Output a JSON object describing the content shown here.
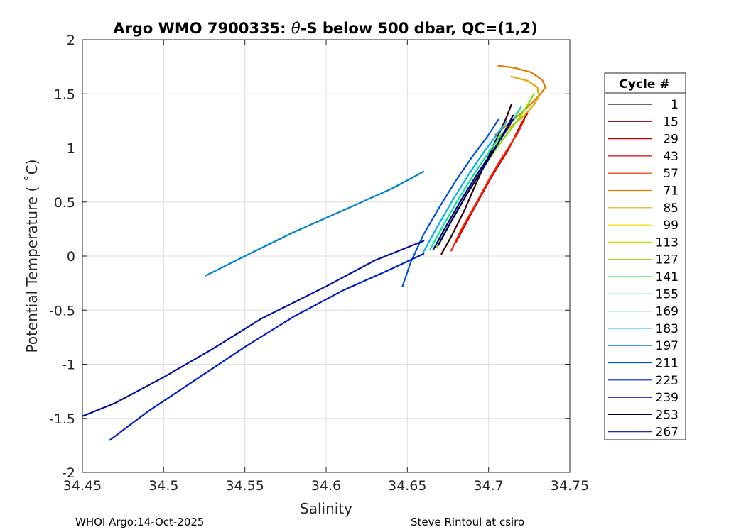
{
  "chart_data": {
    "type": "line",
    "title_prefix": "Argo WMO 7900335: ",
    "title_theta": "θ",
    "title_suffix": "-S below 500 dbar,  QC=(1,2)",
    "xlabel": "Salinity",
    "ylabel": "Potential Temperature ( ˚C)",
    "xlim": [
      34.45,
      34.75
    ],
    "ylim": [
      -2,
      2
    ],
    "x_ticks": [
      34.45,
      34.5,
      34.55,
      34.6,
      34.65,
      34.7,
      34.75
    ],
    "x_tick_labels": [
      "34.45",
      "34.5",
      "34.55",
      "34.6",
      "34.65",
      "34.7",
      "34.75"
    ],
    "y_ticks": [
      -2,
      -1.5,
      -1,
      -0.5,
      0,
      0.5,
      1,
      1.5,
      2
    ],
    "y_tick_labels": [
      "-2",
      "-1.5",
      "-1",
      "-0.5",
      "0",
      "0.5",
      "1",
      "1.5",
      "2"
    ],
    "grid": true,
    "legend": {
      "title": "Cycle #",
      "position": "right",
      "entries": [
        {
          "label": "1",
          "color": "#330000"
        },
        {
          "label": "15",
          "color": "#8b0000"
        },
        {
          "label": "29",
          "color": "#c00000"
        },
        {
          "label": "43",
          "color": "#e00000"
        },
        {
          "label": "57",
          "color": "#ff2000"
        },
        {
          "label": "71",
          "color": "#e67a00"
        },
        {
          "label": "85",
          "color": "#e6a800"
        },
        {
          "label": "99",
          "color": "#f0e000"
        },
        {
          "label": "113",
          "color": "#c8e600"
        },
        {
          "label": "127",
          "color": "#80e000"
        },
        {
          "label": "141",
          "color": "#30e040"
        },
        {
          "label": "155",
          "color": "#00e690"
        },
        {
          "label": "169",
          "color": "#00d8d0"
        },
        {
          "label": "183",
          "color": "#00b4e6"
        },
        {
          "label": "197",
          "color": "#0080d0"
        },
        {
          "label": "211",
          "color": "#0050e0"
        },
        {
          "label": "225",
          "color": "#0020c8"
        },
        {
          "label": "239",
          "color": "#000090"
        },
        {
          "label": "253",
          "color": "#000050"
        },
        {
          "label": "267",
          "color": "#0010a0"
        }
      ]
    },
    "series": [
      {
        "name": "1",
        "color": "#330000",
        "x": [
          34.671,
          34.677,
          34.685,
          34.692,
          34.698,
          34.703,
          34.707,
          34.711,
          34.714
        ],
        "y": [
          0.02,
          0.18,
          0.42,
          0.66,
          0.86,
          1.02,
          1.15,
          1.28,
          1.4
        ]
      },
      {
        "name": "29",
        "color": "#c00000",
        "x": [
          34.68,
          34.686,
          34.694,
          34.701,
          34.707,
          34.712,
          34.716,
          34.72,
          34.724
        ],
        "y": [
          0.13,
          0.3,
          0.52,
          0.71,
          0.86,
          0.98,
          1.1,
          1.22,
          1.32
        ]
      },
      {
        "name": "57",
        "color": "#ff2000",
        "x": [
          34.677,
          34.683,
          34.692,
          34.7,
          34.707,
          34.713,
          34.718,
          34.722
        ],
        "y": [
          0.05,
          0.24,
          0.48,
          0.7,
          0.88,
          1.02,
          1.14,
          1.26
        ]
      },
      {
        "name": "71",
        "color": "#e67a00",
        "x": [
          34.704,
          34.712,
          34.72,
          34.727,
          34.732,
          34.735,
          34.733,
          34.726,
          34.716,
          34.706
        ],
        "y": [
          1.12,
          1.22,
          1.32,
          1.42,
          1.5,
          1.56,
          1.63,
          1.7,
          1.74,
          1.76
        ]
      },
      {
        "name": "85",
        "color": "#e6a800",
        "x": [
          34.706,
          34.714,
          34.722,
          34.728,
          34.731,
          34.73,
          34.724,
          34.714
        ],
        "y": [
          1.1,
          1.2,
          1.3,
          1.4,
          1.48,
          1.56,
          1.62,
          1.66
        ]
      },
      {
        "name": "127",
        "color": "#80e000",
        "x": [
          34.668,
          34.676,
          34.686,
          34.696,
          34.705,
          34.713,
          34.72,
          34.725,
          34.728
        ],
        "y": [
          0.08,
          0.3,
          0.56,
          0.8,
          1.0,
          1.16,
          1.3,
          1.42,
          1.5
        ]
      },
      {
        "name": "155",
        "color": "#00e690",
        "x": [
          34.664,
          34.672,
          34.682,
          34.692,
          34.701,
          34.709,
          34.716,
          34.72
        ],
        "y": [
          0.06,
          0.28,
          0.54,
          0.78,
          0.98,
          1.14,
          1.28,
          1.38
        ]
      },
      {
        "name": "183",
        "color": "#00b4e6",
        "x": [
          34.66,
          34.668,
          34.678,
          34.688,
          34.697,
          34.705,
          34.711
        ],
        "y": [
          0.04,
          0.26,
          0.52,
          0.76,
          0.96,
          1.12,
          1.24
        ]
      },
      {
        "name": "211",
        "color": "#0050e0",
        "x": [
          34.647,
          34.652,
          34.66,
          34.67,
          34.68,
          34.69,
          34.699,
          34.706
        ],
        "y": [
          -0.28,
          -0.06,
          0.2,
          0.46,
          0.7,
          0.92,
          1.1,
          1.26
        ]
      },
      {
        "name": "225",
        "color": "#0020c8",
        "x": [
          34.467,
          34.49,
          34.52,
          34.55,
          34.58,
          34.61,
          34.64,
          34.66
        ],
        "y": [
          -1.7,
          -1.44,
          -1.14,
          -0.84,
          -0.56,
          -0.32,
          -0.12,
          0.02
        ]
      },
      {
        "name": "239",
        "color": "#000090",
        "x": [
          34.666,
          34.674,
          34.684,
          34.694,
          34.703,
          34.71,
          34.715
        ],
        "y": [
          0.06,
          0.28,
          0.54,
          0.78,
          0.98,
          1.14,
          1.26
        ]
      },
      {
        "name": "253",
        "color": "#000050",
        "x": [
          34.669,
          34.677,
          34.687,
          34.697,
          34.705,
          34.711,
          34.715
        ],
        "y": [
          0.1,
          0.32,
          0.58,
          0.82,
          1.02,
          1.18,
          1.3
        ]
      },
      {
        "name": "267",
        "color": "#0010a0",
        "x": [
          34.45,
          34.47,
          34.5,
          34.53,
          34.56,
          34.6,
          34.63,
          34.66
        ],
        "y": [
          -1.48,
          -1.36,
          -1.12,
          -0.86,
          -0.58,
          -0.28,
          -0.04,
          0.14
        ]
      },
      {
        "name": "197",
        "color": "#0080d0",
        "x": [
          34.526,
          34.55,
          34.58,
          34.61,
          34.64,
          34.66
        ],
        "y": [
          -0.18,
          0.0,
          0.22,
          0.42,
          0.62,
          0.78
        ]
      }
    ],
    "footer_left": "WHOI Argo:14-Oct-2025",
    "footer_right": "Steve Rintoul at csiro"
  }
}
